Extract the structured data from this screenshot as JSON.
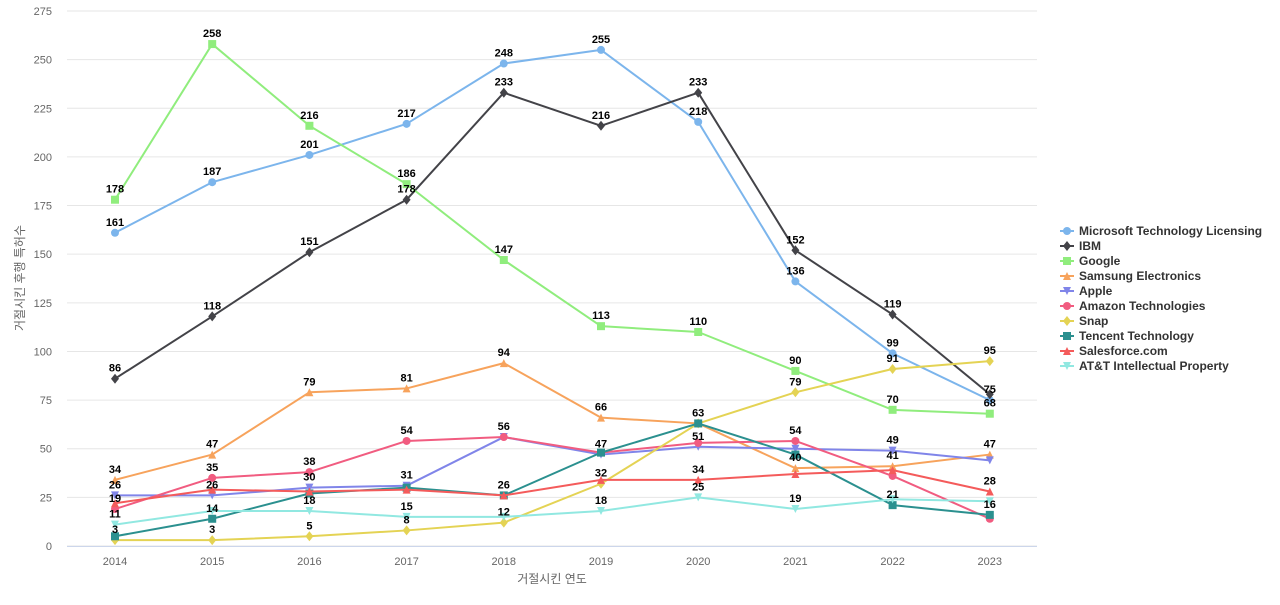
{
  "chart_data": {
    "type": "line",
    "xlabel": "거절시킨 연도",
    "ylabel": "거절시킨 후행 특허수",
    "categories": [
      "2014",
      "2015",
      "2016",
      "2017",
      "2018",
      "2019",
      "2020",
      "2021",
      "2022",
      "2023"
    ],
    "ylim": [
      0,
      275
    ],
    "yticks": [
      0,
      25,
      50,
      75,
      100,
      125,
      150,
      175,
      200,
      225,
      250,
      275
    ],
    "grid": true,
    "legend_position": "right",
    "series": [
      {
        "name": "Microsoft Technology Licensing",
        "color": "#7cb5ec",
        "marker": "circle",
        "values": [
          161,
          187,
          201,
          217,
          248,
          255,
          218,
          136,
          99,
          75
        ],
        "labeled": [
          true,
          true,
          true,
          true,
          true,
          true,
          true,
          true,
          true,
          true
        ]
      },
      {
        "name": "IBM",
        "color": "#434348",
        "marker": "diamond",
        "values": [
          86,
          118,
          151,
          178,
          233,
          216,
          233,
          152,
          119,
          78
        ],
        "labeled": [
          true,
          true,
          true,
          true,
          true,
          true,
          true,
          true,
          true,
          false
        ]
      },
      {
        "name": "Google",
        "color": "#90ed7d",
        "marker": "square",
        "values": [
          178,
          258,
          216,
          186,
          147,
          113,
          110,
          90,
          70,
          68
        ],
        "labeled": [
          true,
          true,
          true,
          true,
          true,
          true,
          true,
          true,
          true,
          true
        ]
      },
      {
        "name": "Samsung Electronics",
        "color": "#f7a35c",
        "marker": "triangle",
        "values": [
          34,
          47,
          79,
          81,
          94,
          66,
          63,
          40,
          41,
          47
        ],
        "labeled": [
          true,
          true,
          true,
          true,
          true,
          true,
          false,
          true,
          true,
          true
        ]
      },
      {
        "name": "Apple",
        "color": "#8085e9",
        "marker": "triangle-down",
        "values": [
          26,
          26,
          30,
          31,
          56,
          47,
          51,
          50,
          49,
          44
        ],
        "labeled": [
          true,
          true,
          true,
          true,
          false,
          true,
          true,
          false,
          true,
          false
        ]
      },
      {
        "name": "Amazon Technologies",
        "color": "#f15c80",
        "marker": "circle",
        "values": [
          19,
          35,
          38,
          54,
          56,
          48,
          53,
          54,
          36,
          14
        ],
        "labeled": [
          true,
          true,
          true,
          true,
          true,
          false,
          false,
          true,
          false,
          false
        ]
      },
      {
        "name": "Snap",
        "color": "#e4d354",
        "marker": "diamond",
        "values": [
          3,
          3,
          5,
          8,
          12,
          32,
          63,
          79,
          91,
          95
        ],
        "labeled": [
          true,
          true,
          true,
          true,
          true,
          true,
          false,
          true,
          true,
          true
        ]
      },
      {
        "name": "Tencent Technology",
        "color": "#2b908f",
        "marker": "square",
        "values": [
          5,
          14,
          27,
          30,
          26,
          48,
          63,
          47,
          21,
          16
        ],
        "labeled": [
          false,
          true,
          false,
          false,
          false,
          false,
          true,
          false,
          true,
          true
        ]
      },
      {
        "name": "Salesforce.com",
        "color": "#f45b5b",
        "marker": "triangle",
        "values": [
          22,
          29,
          28,
          29,
          26,
          34,
          34,
          37,
          39,
          28
        ],
        "labeled": [
          false,
          false,
          false,
          false,
          true,
          false,
          true,
          false,
          false,
          true
        ]
      },
      {
        "name": "AT&T Intellectual Property",
        "color": "#91e8e1",
        "marker": "triangle-down",
        "values": [
          11,
          18,
          18,
          15,
          15,
          18,
          25,
          19,
          24,
          23
        ],
        "labeled": [
          true,
          false,
          true,
          true,
          false,
          true,
          true,
          true,
          false,
          false
        ]
      }
    ]
  }
}
